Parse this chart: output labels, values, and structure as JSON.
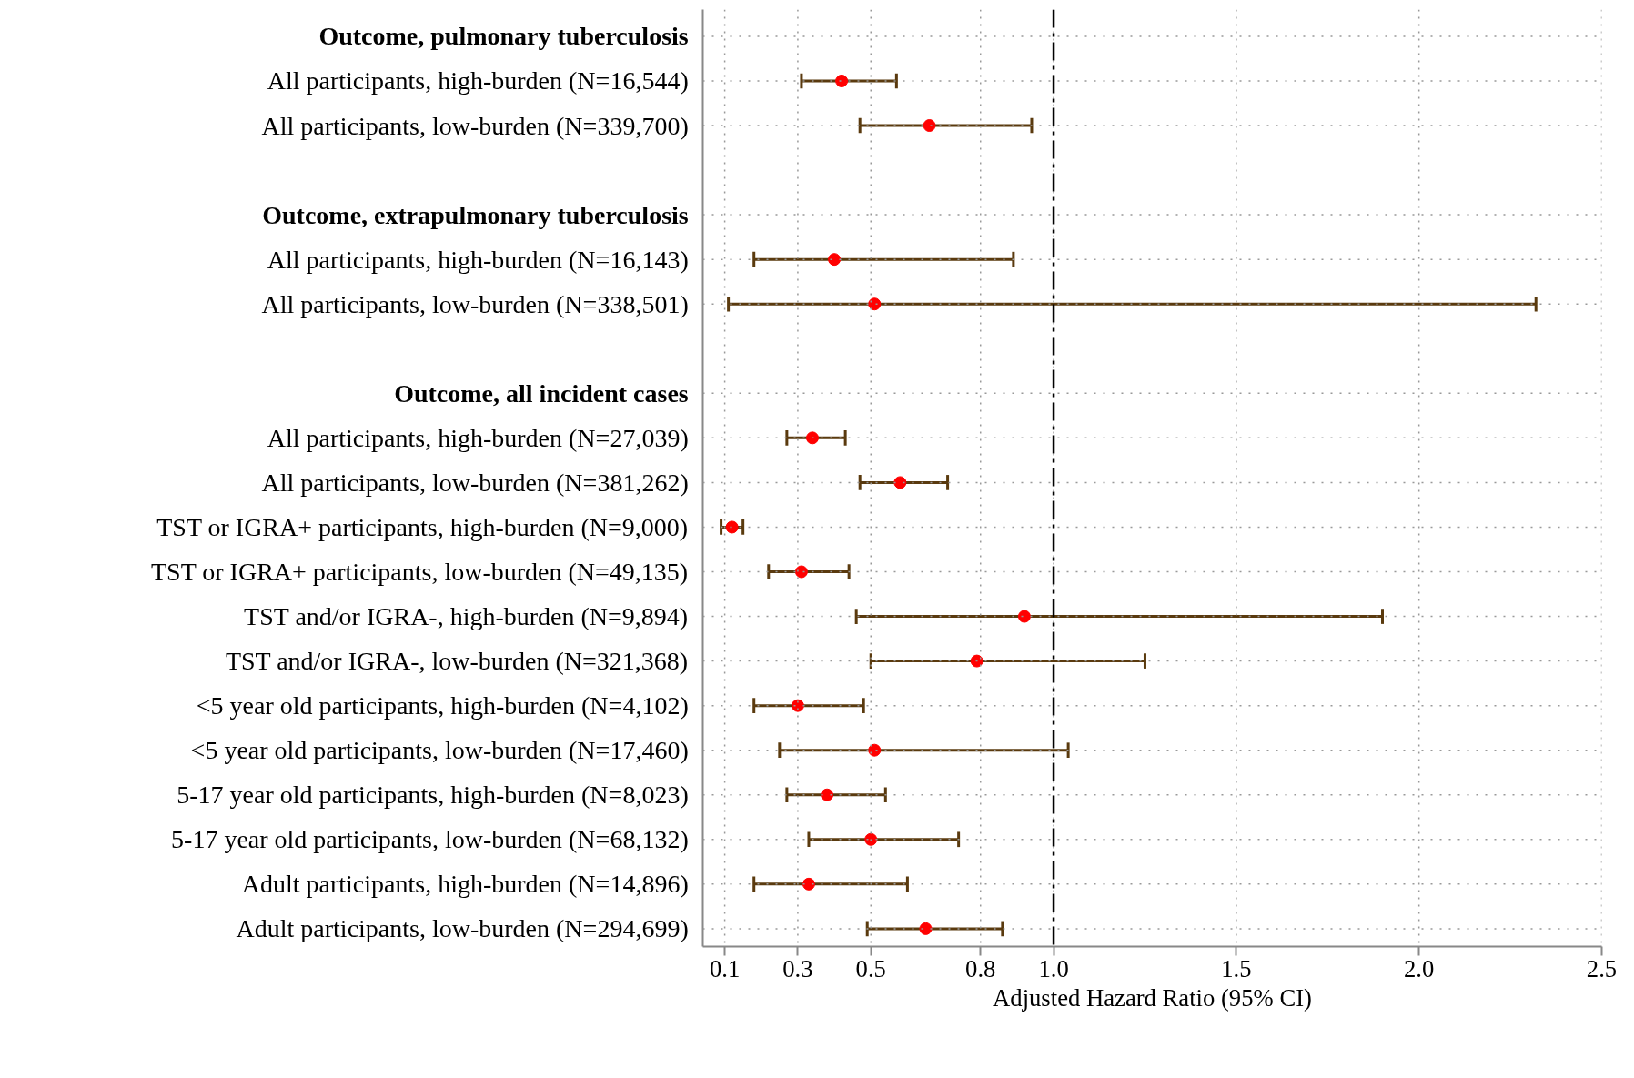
{
  "chart_data": {
    "type": "scatter",
    "orientation": "horizontal",
    "categories": [
      "Outcome, pulmonary tuberculosis",
      "All participants, high-burden (N=16,544)",
      "All participants, low-burden (N=339,700)",
      null,
      "Outcome, extrapulmonary tuberculosis",
      "All participants, high-burden (N=16,143)",
      "All participants, low-burden (N=338,501)",
      null,
      "Outcome, all incident cases",
      "All participants, high-burden (N=27,039)",
      "All participants, low-burden (N=381,262)",
      "TST or IGRA+ participants, high-burden (N=9,000)",
      "TST or IGRA+ participants, low-burden (N=49,135)",
      "TST and/or IGRA-, high-burden (N=9,894)",
      "TST and/or IGRA-, low-burden (N=321,368)",
      "<5 year old participants, high-burden (N=4,102)",
      "<5 year old participants, low-burden (N=17,460)",
      "5-17 year old participants, high-burden (N=8,023)",
      "5-17 year old participants, low-burden (N=68,132)",
      "Adult participants, high-burden (N=14,896)",
      "Adult participants, low-burden (N=294,699)"
    ],
    "series": [
      {
        "color": "#ff0000",
        "values": [
          null,
          0.42,
          0.66,
          null,
          null,
          0.4,
          0.51,
          null,
          null,
          0.34,
          0.58,
          0.12,
          0.31,
          0.92,
          0.79,
          0.3,
          0.51,
          0.38,
          0.5,
          0.33,
          0.65
        ],
        "errors": [
          null,
          [
            0.31,
            0.57
          ],
          [
            0.47,
            0.94
          ],
          null,
          null,
          [
            0.18,
            0.89
          ],
          [
            0.11,
            2.32
          ],
          null,
          null,
          [
            0.27,
            0.43
          ],
          [
            0.47,
            0.71
          ],
          [
            0.09,
            0.15
          ],
          [
            0.22,
            0.44
          ],
          [
            0.46,
            1.9
          ],
          [
            0.5,
            1.25
          ],
          [
            0.18,
            0.48
          ],
          [
            0.25,
            1.04
          ],
          [
            0.27,
            0.54
          ],
          [
            0.33,
            0.74
          ],
          [
            0.18,
            0.6
          ],
          [
            0.49,
            0.86
          ]
        ]
      }
    ],
    "xlabel": "Adjusted Hazard Ratio (95% CI)",
    "xlim": [
      0.04,
      2.5
    ],
    "xticks": [
      0.1,
      0.3,
      0.5,
      0.8,
      {
        "value": 1.0,
        "label": "1.0"
      },
      1.5,
      {
        "value": 2.0,
        "label": "2.0"
      },
      2.5
    ],
    "ref_lines": [
      {
        "axis": "x",
        "value": 1.0,
        "color": "#000000",
        "line_style": "dashed"
      }
    ],
    "grid": true,
    "marker": "circle"
  }
}
